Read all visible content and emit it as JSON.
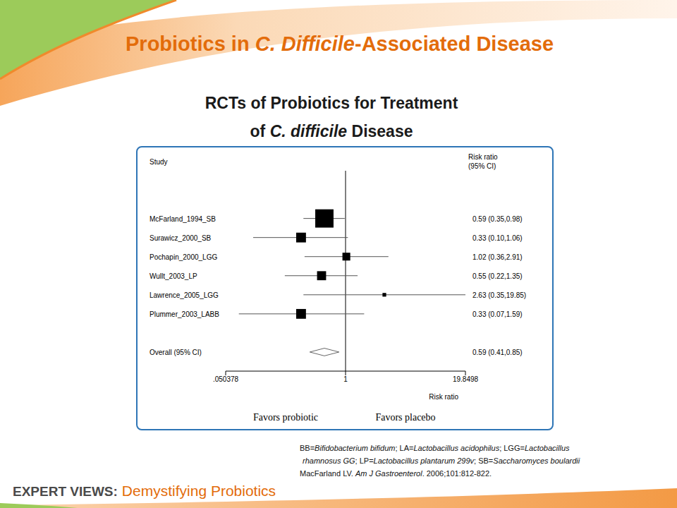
{
  "slide": {
    "title": [
      {
        "text": "Probiotics in "
      },
      {
        "text": "C. Difficile",
        "italic": true
      },
      {
        "text": "-Associated Disease"
      }
    ],
    "footnote": [
      [
        {
          "text": "BB="
        },
        {
          "text": "Bifidobacterium bifidum",
          "italic": true
        },
        {
          "text": "; LA="
        },
        {
          "text": "Lactobacillus acidophilus",
          "italic": true
        },
        {
          "text": "; LGG="
        },
        {
          "text": "Lactobacillus",
          "italic": true
        }
      ],
      [
        {
          "text": "rhamnosus GG",
          "italic": true
        },
        {
          "text": "; LP="
        },
        {
          "text": "Lactobacillus plantarum 299v",
          "italic": true
        },
        {
          "text": ";  SB="
        },
        {
          "text": "Saccharomyces boulardii",
          "italic": true
        }
      ],
      [
        {
          "text": "MacFarland LV. "
        },
        {
          "text": "Am J Gastroenterol",
          "italic": true
        },
        {
          "text": ". 2006;101:812-822."
        }
      ]
    ],
    "banner_label": "EXPERT VIEWS:",
    "banner_title": "Demystifying Probiotics"
  },
  "chart_data": {
    "type": "forest",
    "title": [
      [
        {
          "text": "RCTs of Probiotics for Treatment"
        }
      ],
      [
        {
          "text": "of "
        },
        {
          "text": "C. difficile",
          "italic": true
        },
        {
          "text": " Disease"
        }
      ]
    ],
    "column_headers": {
      "study": "Study",
      "estimate": [
        "Risk ratio",
        "(95% CI)"
      ]
    },
    "categories": [
      "McFarland_1994_SB",
      "Surawicz_2000_SB",
      "Pochapin_2000_LGG",
      "Wullt_2003_LP",
      "Lawrence_2005_LGG",
      "Plummer_2003_LABB"
    ],
    "values": [
      0.59,
      0.33,
      1.02,
      0.55,
      2.63,
      0.33
    ],
    "ci_low": [
      0.35,
      0.1,
      0.36,
      0.22,
      0.35,
      0.07
    ],
    "ci_high": [
      0.98,
      1.06,
      2.91,
      1.35,
      19.85,
      1.59
    ],
    "weights": [
      49,
      14,
      9,
      12,
      2,
      14
    ],
    "value_labels": [
      "0.59 (0.35,0.98)",
      "0.33 (0.10,1.06)",
      "1.02 (0.36,2.91)",
      "0.55 (0.22,1.35)",
      "2.63 (0.35,19.85)",
      "0.33 (0.07,1.59)"
    ],
    "overall": {
      "label": "Overall (95% CI)",
      "value": 0.59,
      "ci_low": 0.41,
      "ci_high": 0.85,
      "value_label": "0.59 (0.41,0.85)"
    },
    "reference_x": 1,
    "log": "x",
    "xlim": [
      0.050378,
      19.8498
    ],
    "xticks": [
      {
        "value": 0.050378,
        "label": ".050378"
      },
      1,
      {
        "value": 19.8498,
        "label": "19.8498"
      }
    ],
    "x_label": "Risk ratio",
    "annotations": [
      "Favors probiotic",
      "Favors placebo"
    ],
    "marker": "square",
    "color": "#000000"
  }
}
